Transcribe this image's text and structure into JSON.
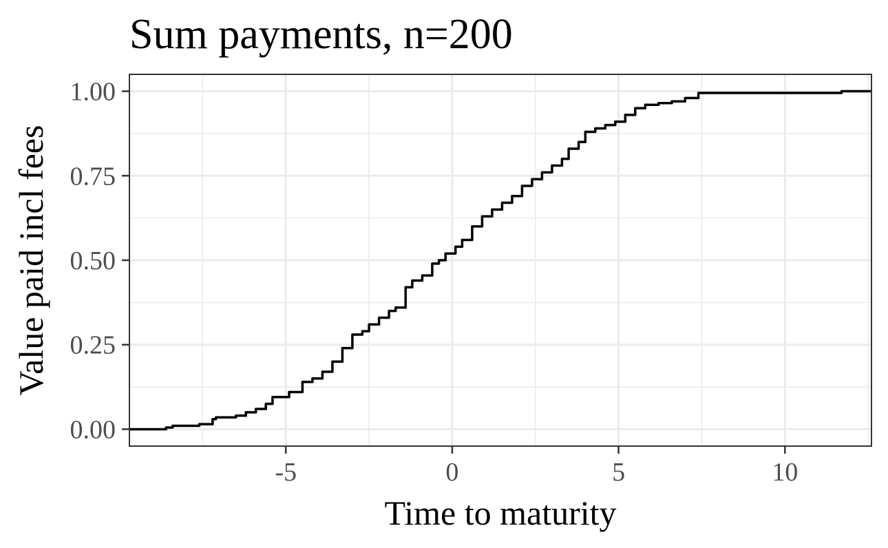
{
  "chart_data": {
    "type": "line",
    "title": "Sum payments, n=200",
    "xlabel": "Time to maturity",
    "ylabel": "Value paid incl fees",
    "xlim": [
      -9.7,
      12.6
    ],
    "ylim": [
      -0.05,
      1.05
    ],
    "x_ticks": [
      -5,
      0,
      5,
      10
    ],
    "x_tick_labels": [
      "-5",
      "0",
      "5",
      "10"
    ],
    "x_minor_ticks": [
      -7.5,
      -2.5,
      2.5,
      7.5,
      12.5
    ],
    "y_ticks": [
      0,
      0.25,
      0.5,
      0.75,
      1
    ],
    "y_tick_labels": [
      "0.00",
      "0.25",
      "0.50",
      "0.75",
      "1.00"
    ],
    "y_minor_ticks": [
      0.125,
      0.375,
      0.625,
      0.875
    ],
    "grid": true,
    "step": true,
    "series": [
      {
        "color": "#000000",
        "x": [
          -9.7,
          -8.6,
          -8.4,
          -7.6,
          -7.2,
          -7.1,
          -6.5,
          -6.2,
          -5.9,
          -5.6,
          -5.4,
          -5.2,
          -4.9,
          -4.5,
          -4.2,
          -3.9,
          -3.6,
          -3.3,
          -3.0,
          -2.7,
          -2.5,
          -2.2,
          -1.9,
          -1.7,
          -1.4,
          -1.2,
          -0.9,
          -0.6,
          -0.4,
          -0.2,
          0.1,
          0.3,
          0.6,
          0.9,
          1.2,
          1.5,
          1.8,
          2.1,
          2.4,
          2.7,
          3.0,
          3.3,
          3.5,
          3.8,
          4.0,
          4.3,
          4.6,
          4.9,
          5.2,
          5.5,
          5.8,
          6.2,
          6.6,
          7.0,
          7.4,
          7.5,
          11.7,
          12.6
        ],
        "y": [
          0.0,
          0.005,
          0.01,
          0.015,
          0.03,
          0.035,
          0.04,
          0.05,
          0.06,
          0.075,
          0.095,
          0.095,
          0.11,
          0.14,
          0.15,
          0.17,
          0.2,
          0.24,
          0.28,
          0.29,
          0.31,
          0.33,
          0.35,
          0.36,
          0.42,
          0.44,
          0.455,
          0.49,
          0.5,
          0.52,
          0.54,
          0.56,
          0.6,
          0.63,
          0.65,
          0.67,
          0.69,
          0.72,
          0.74,
          0.76,
          0.78,
          0.8,
          0.83,
          0.85,
          0.88,
          0.89,
          0.9,
          0.91,
          0.93,
          0.95,
          0.96,
          0.965,
          0.97,
          0.98,
          0.995,
          0.995,
          1.0,
          1.0
        ]
      }
    ]
  }
}
